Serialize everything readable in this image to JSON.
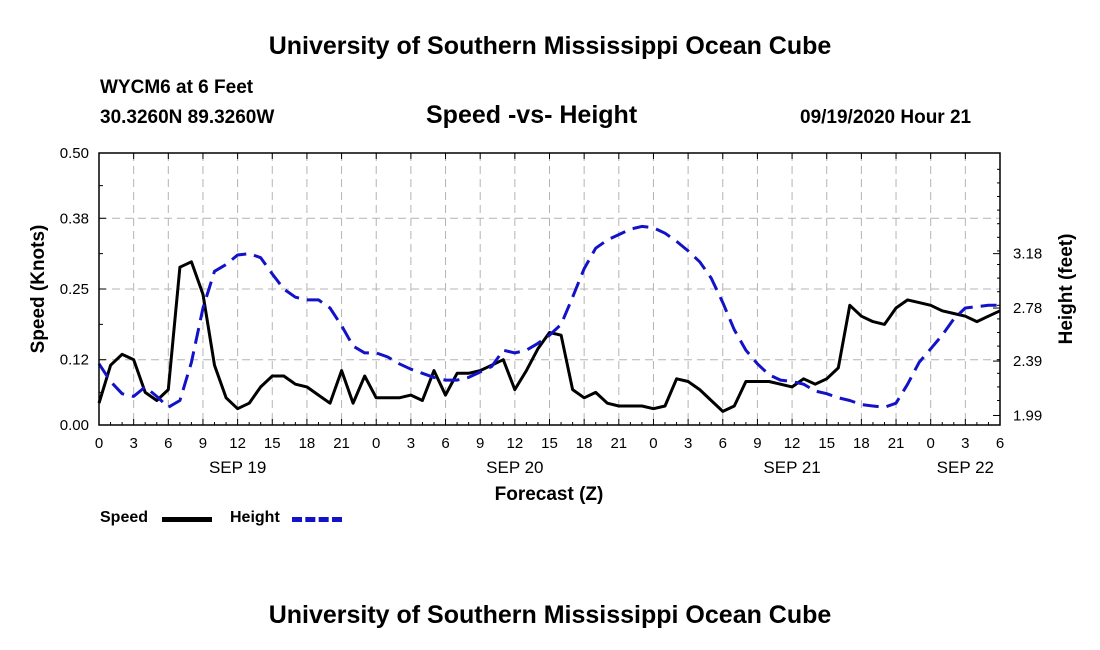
{
  "page": {
    "top_title": "University of Southern Mississippi Ocean Cube",
    "bottom_title": "University of Southern Mississippi Ocean Cube",
    "station": "WYCM6 at 6 Feet",
    "location": "30.3260N 89.3260W",
    "plot_title": "Speed -vs- Height",
    "datetime": "09/19/2020 Hour 21"
  },
  "legend": {
    "speed_label": "Speed",
    "height_label": "Height"
  },
  "colors": {
    "speed": "#000000",
    "height": "#1212c8",
    "grid": "#b4b4b4"
  },
  "chart_data": {
    "type": "line",
    "title": "Speed -vs- Height",
    "xlabel": "Forecast (Z)",
    "ylabel": "Speed (Knots)",
    "y2label": "Height (feet)",
    "xlim": [
      0,
      78
    ],
    "ylim": [
      0,
      0.5
    ],
    "y2lim": [
      1.92,
      3.92
    ],
    "yticks": [
      0.0,
      0.12,
      0.25,
      0.38,
      0.5
    ],
    "ytick_labels": [
      "0.00",
      "0.12",
      "0.25",
      "0.38",
      "0.50"
    ],
    "y2ticks": [
      1.99,
      2.39,
      2.78,
      3.18
    ],
    "y2tick_labels": [
      "1.99",
      "2.39",
      "2.78",
      "3.18"
    ],
    "xticks": [
      0,
      3,
      6,
      9,
      12,
      15,
      18,
      21,
      24,
      27,
      30,
      33,
      36,
      39,
      42,
      45,
      48,
      51,
      54,
      57,
      60,
      63,
      66,
      69,
      72,
      75,
      78
    ],
    "xtick_labels": [
      "0",
      "3",
      "6",
      "9",
      "12",
      "15",
      "18",
      "21",
      "0",
      "3",
      "6",
      "9",
      "12",
      "15",
      "18",
      "21",
      "0",
      "3",
      "6",
      "9",
      "12",
      "15",
      "18",
      "21",
      "0",
      "3",
      "6"
    ],
    "day_labels": [
      {
        "x": 12,
        "label": "SEP 19"
      },
      {
        "x": 36,
        "label": "SEP 20"
      },
      {
        "x": 60,
        "label": "SEP 21"
      },
      {
        "x": 75,
        "label": "SEP 22"
      }
    ],
    "grid": true,
    "series": [
      {
        "name": "Speed",
        "axis": "left",
        "style": "solid",
        "x": [
          0,
          1,
          2,
          3,
          4,
          5,
          6,
          7,
          8,
          9,
          10,
          11,
          12,
          13,
          14,
          15,
          16,
          17,
          18,
          19,
          20,
          21,
          22,
          23,
          24,
          25,
          26,
          27,
          28,
          29,
          30,
          31,
          32,
          33,
          34,
          35,
          36,
          37,
          38,
          39,
          40,
          41,
          42,
          43,
          44,
          45,
          46,
          47,
          48,
          49,
          50,
          51,
          52,
          53,
          54,
          55,
          56,
          57,
          58,
          59,
          60,
          61,
          62,
          63,
          64,
          65,
          66,
          67,
          68,
          69,
          70,
          71,
          72,
          73,
          74,
          75,
          76,
          77,
          78
        ],
        "values": [
          0.04,
          0.11,
          0.13,
          0.12,
          0.06,
          0.045,
          0.065,
          0.29,
          0.3,
          0.24,
          0.11,
          0.05,
          0.03,
          0.04,
          0.07,
          0.09,
          0.09,
          0.075,
          0.07,
          0.055,
          0.04,
          0.1,
          0.04,
          0.09,
          0.05,
          0.05,
          0.05,
          0.055,
          0.045,
          0.1,
          0.055,
          0.095,
          0.095,
          0.1,
          0.11,
          0.12,
          0.065,
          0.1,
          0.14,
          0.17,
          0.165,
          0.065,
          0.05,
          0.06,
          0.04,
          0.035,
          0.035,
          0.035,
          0.03,
          0.035,
          0.085,
          0.08,
          0.065,
          0.045,
          0.025,
          0.035,
          0.08,
          0.08,
          0.08,
          0.075,
          0.07,
          0.085,
          0.075,
          0.085,
          0.105,
          0.22,
          0.2,
          0.19,
          0.185,
          0.215,
          0.23,
          0.225,
          0.22,
          0.21,
          0.205,
          0.2,
          0.19,
          0.2,
          0.21
        ]
      },
      {
        "name": "Height",
        "axis": "right",
        "style": "dashed",
        "x": [
          0,
          1,
          2,
          3,
          4,
          5,
          6,
          7,
          8,
          9,
          10,
          11,
          12,
          13,
          14,
          15,
          16,
          17,
          18,
          19,
          20,
          21,
          22,
          23,
          24,
          25,
          26,
          27,
          28,
          29,
          30,
          31,
          32,
          33,
          34,
          35,
          36,
          37,
          38,
          39,
          40,
          41,
          42,
          43,
          44,
          45,
          46,
          47,
          48,
          49,
          50,
          51,
          52,
          53,
          54,
          55,
          56,
          57,
          58,
          59,
          60,
          61,
          62,
          63,
          64,
          65,
          66,
          67,
          68,
          69,
          70,
          71,
          72,
          73,
          74,
          75,
          76,
          77,
          78
        ],
        "values": [
          2.37,
          2.24,
          2.15,
          2.13,
          2.2,
          2.13,
          2.05,
          2.1,
          2.38,
          2.78,
          3.05,
          3.1,
          3.17,
          3.18,
          3.15,
          3.03,
          2.92,
          2.86,
          2.84,
          2.84,
          2.78,
          2.65,
          2.5,
          2.45,
          2.45,
          2.42,
          2.37,
          2.33,
          2.3,
          2.27,
          2.25,
          2.25,
          2.27,
          2.31,
          2.35,
          2.47,
          2.45,
          2.47,
          2.52,
          2.58,
          2.66,
          2.86,
          3.07,
          3.22,
          3.28,
          3.32,
          3.36,
          3.38,
          3.37,
          3.33,
          3.27,
          3.2,
          3.12,
          3.0,
          2.82,
          2.62,
          2.47,
          2.37,
          2.29,
          2.25,
          2.24,
          2.22,
          2.17,
          2.15,
          2.12,
          2.1,
          2.07,
          2.06,
          2.05,
          2.08,
          2.22,
          2.38,
          2.48,
          2.58,
          2.7,
          2.78,
          2.79,
          2.8,
          2.8
        ]
      }
    ]
  }
}
